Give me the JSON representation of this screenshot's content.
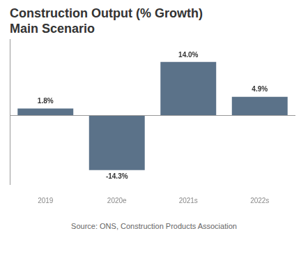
{
  "chart_data": {
    "type": "bar",
    "title": [
      "Construction Output (% Growth)",
      "Main Scenario"
    ],
    "categories": [
      "2019",
      "2020e",
      "2021s",
      "2022s"
    ],
    "values": [
      1.8,
      -14.3,
      14.0,
      4.9
    ],
    "value_labels": [
      "1.8%",
      "-14.3%",
      "14.0%",
      "4.9%"
    ],
    "color": "#5b7289",
    "ylim": [
      -18,
      20
    ],
    "yticks": [
      0
    ],
    "grid": true,
    "data_labels": true,
    "tick_labels": "x",
    "source": "Source: ONS, Construction Products Association"
  }
}
